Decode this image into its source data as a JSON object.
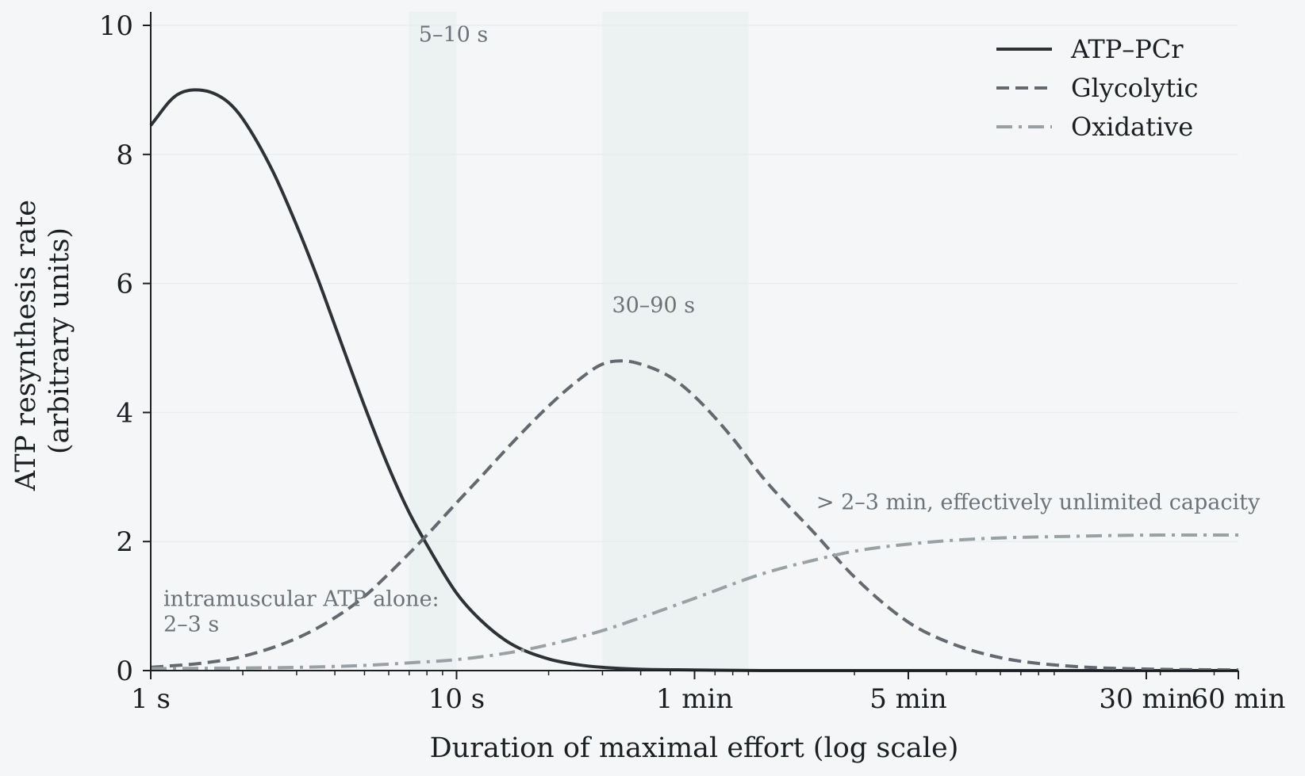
{
  "chart_data": {
    "type": "line",
    "xlabel": "Duration of maximal effort (log scale)",
    "ylabel": [
      "ATP resynthesis rate",
      "(arbitrary units)"
    ],
    "x_scale": "log",
    "x_unit": "seconds",
    "xlim": [
      1,
      3600
    ],
    "ylim": [
      0,
      10
    ],
    "x_ticks": [
      {
        "value": 1,
        "label": "1 s"
      },
      {
        "value": 10,
        "label": "10 s"
      },
      {
        "value": 60,
        "label": "1 min"
      },
      {
        "value": 300,
        "label": "5 min"
      },
      {
        "value": 1800,
        "label": "30 min"
      },
      {
        "value": 3600,
        "label": "60 min"
      }
    ],
    "y_ticks": [
      0,
      2,
      4,
      6,
      8,
      10
    ],
    "grid": "horizontal",
    "legend_position": "top-right",
    "shaded_regions": [
      {
        "x": [
          7,
          10
        ],
        "label": "5–10 s",
        "label_y": 9.75
      },
      {
        "x": [
          30,
          90
        ],
        "label": "30–90 s",
        "label_y": 5.55
      }
    ],
    "annotations": [
      {
        "lines": [
          "intramuscular ATP alone:",
          "2–3 s"
        ],
        "x": 1.1,
        "y": 1.0
      },
      {
        "lines": [
          "> 2–3 min, effectively unlimited capacity"
        ],
        "x": 150,
        "y": 2.5
      }
    ],
    "series": [
      {
        "name": "ATP–PCr",
        "style": "solid",
        "color": "#2e3236",
        "x": [
          1,
          1.2,
          1.4,
          1.6,
          1.8,
          2,
          2.5,
          3,
          3.5,
          4,
          5,
          6,
          7,
          8,
          10,
          12,
          15,
          20,
          25,
          30,
          40,
          60,
          100,
          300,
          1000,
          3600
        ],
        "y": [
          8.45,
          8.9,
          9.0,
          8.95,
          8.8,
          8.55,
          7.75,
          6.9,
          6.1,
          5.35,
          4.1,
          3.15,
          2.45,
          1.95,
          1.2,
          0.78,
          0.42,
          0.18,
          0.09,
          0.05,
          0.02,
          0.01,
          0,
          0,
          0,
          0
        ]
      },
      {
        "name": "Glycolytic",
        "style": "dashed",
        "color": "#63696e",
        "x": [
          1,
          1.5,
          2,
          3,
          4,
          5,
          6,
          8,
          10,
          12,
          15,
          20,
          25,
          30,
          35,
          40,
          50,
          60,
          80,
          100,
          150,
          200,
          300,
          400,
          600,
          1000,
          2000,
          3600
        ],
        "y": [
          0.05,
          0.12,
          0.22,
          0.5,
          0.82,
          1.15,
          1.5,
          2.1,
          2.6,
          3.0,
          3.5,
          4.1,
          4.5,
          4.75,
          4.8,
          4.75,
          4.55,
          4.25,
          3.6,
          3.0,
          2.1,
          1.45,
          0.75,
          0.45,
          0.2,
          0.07,
          0.02,
          0.01
        ]
      },
      {
        "name": "Oxidative",
        "style": "dashdot",
        "color": "#9aa1a5",
        "x": [
          1,
          2,
          3,
          5,
          7,
          10,
          15,
          20,
          30,
          40,
          60,
          100,
          150,
          200,
          300,
          500,
          1000,
          2000,
          3600
        ],
        "y": [
          0.03,
          0.04,
          0.05,
          0.08,
          0.12,
          0.17,
          0.28,
          0.4,
          0.62,
          0.82,
          1.12,
          1.5,
          1.72,
          1.85,
          1.96,
          2.04,
          2.08,
          2.1,
          2.1
        ]
      }
    ]
  }
}
